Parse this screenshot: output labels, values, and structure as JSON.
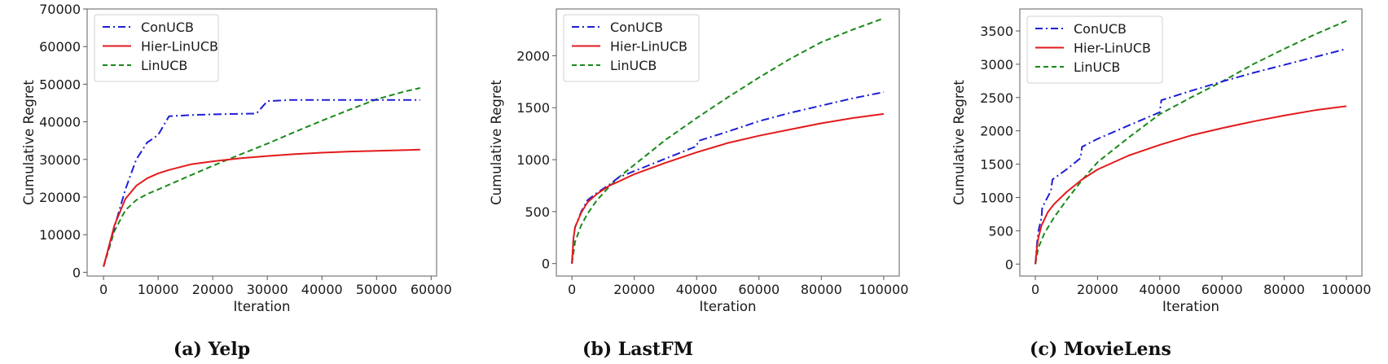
{
  "chart_data": [
    {
      "type": "line",
      "caption": "(a) Yelp",
      "xlabel": "Iteration",
      "ylabel": "Cumulative Regret",
      "xlim": [
        -3000,
        61000
      ],
      "ylim": [
        -1000,
        70000
      ],
      "xticks": [
        0,
        10000,
        20000,
        30000,
        40000,
        50000,
        60000
      ],
      "yticks": [
        0,
        10000,
        20000,
        30000,
        40000,
        50000,
        60000,
        70000
      ],
      "grid": false,
      "legend_position": "upper left",
      "series": [
        {
          "name": "ConUCB",
          "color": "#1f1fd6",
          "style": "dashdot",
          "x": [
            0,
            2000,
            4000,
            6000,
            8000,
            10000,
            12000,
            16000,
            20000,
            28000,
            30000,
            34000,
            40000,
            50000,
            58000
          ],
          "y": [
            1500,
            12000,
            22000,
            30000,
            34500,
            36500,
            41500,
            41800,
            42000,
            42200,
            45500,
            45800,
            45800,
            45800,
            45800
          ]
        },
        {
          "name": "Hier-LinUCB",
          "color": "#e31a1c",
          "style": "solid",
          "x": [
            0,
            2000,
            4000,
            6000,
            8000,
            10000,
            12000,
            16000,
            20000,
            25000,
            30000,
            35000,
            40000,
            45000,
            50000,
            58000
          ],
          "y": [
            1500,
            12500,
            19500,
            23000,
            25000,
            26300,
            27200,
            28700,
            29500,
            30300,
            30900,
            31400,
            31800,
            32100,
            32300,
            32600
          ]
        },
        {
          "name": "LinUCB",
          "color": "#1a8a1a",
          "style": "dashed",
          "x": [
            0,
            2000,
            4000,
            6000,
            8000,
            10000,
            15000,
            20000,
            25000,
            30000,
            35000,
            40000,
            45000,
            50000,
            55000,
            58000
          ],
          "y": [
            1500,
            11000,
            16500,
            19200,
            20800,
            22000,
            25200,
            28300,
            31300,
            34200,
            37300,
            40300,
            43200,
            46000,
            48000,
            49000
          ]
        }
      ]
    },
    {
      "type": "line",
      "caption": "(b) LastFM",
      "xlabel": "Iteration",
      "ylabel": "Cumulative Regret",
      "xlim": [
        -5000,
        105000
      ],
      "ylim": [
        -120,
        2450
      ],
      "xticks": [
        0,
        20000,
        40000,
        60000,
        80000,
        100000
      ],
      "yticks": [
        0,
        500,
        1000,
        1500,
        2000
      ],
      "grid": false,
      "legend_position": "upper left",
      "series": [
        {
          "name": "ConUCB",
          "color": "#1f1fd6",
          "style": "dashdot",
          "x": [
            0,
            500,
            1000,
            3000,
            5000,
            8000,
            12000,
            15000,
            20000,
            30000,
            40000,
            40500,
            50000,
            60000,
            70000,
            80000,
            90000,
            100000
          ],
          "y": [
            0,
            250,
            350,
            500,
            610,
            680,
            760,
            830,
            890,
            1010,
            1130,
            1180,
            1270,
            1370,
            1450,
            1520,
            1590,
            1650
          ]
        },
        {
          "name": "Hier-LinUCB",
          "color": "#e31a1c",
          "style": "solid",
          "x": [
            0,
            500,
            1000,
            3000,
            5000,
            8000,
            12000,
            15000,
            20000,
            30000,
            40000,
            50000,
            60000,
            70000,
            80000,
            90000,
            100000
          ],
          "y": [
            0,
            250,
            350,
            490,
            590,
            670,
            750,
            790,
            860,
            970,
            1070,
            1160,
            1230,
            1290,
            1350,
            1400,
            1440
          ]
        },
        {
          "name": "LinUCB",
          "color": "#1a8a1a",
          "style": "dashed",
          "x": [
            0,
            1000,
            3000,
            5000,
            8000,
            12000,
            15000,
            20000,
            30000,
            40000,
            50000,
            60000,
            70000,
            80000,
            90000,
            100000
          ],
          "y": [
            0,
            210,
            370,
            480,
            610,
            740,
            830,
            950,
            1190,
            1400,
            1600,
            1790,
            1970,
            2130,
            2250,
            2360
          ]
        }
      ]
    },
    {
      "type": "line",
      "caption": "(c) MovieLens",
      "xlabel": "Iteration",
      "ylabel": "Cumulative Regret",
      "xlim": [
        -5000,
        105000
      ],
      "ylim": [
        -180,
        3830
      ],
      "xticks": [
        0,
        20000,
        40000,
        60000,
        80000,
        100000
      ],
      "yticks": [
        0,
        500,
        1000,
        1500,
        2000,
        2500,
        3000,
        3500
      ],
      "grid": false,
      "legend_position": "upper left",
      "series": [
        {
          "name": "ConUCB",
          "color": "#1f1fd6",
          "style": "dashdot",
          "x": [
            0,
            500,
            1000,
            2000,
            2200,
            5000,
            5500,
            10000,
            14500,
            15000,
            20000,
            30000,
            40000,
            40500,
            50000,
            60000,
            70000,
            80000,
            90000,
            100000
          ],
          "y": [
            0,
            300,
            500,
            700,
            850,
            1100,
            1270,
            1420,
            1590,
            1760,
            1880,
            2080,
            2280,
            2460,
            2600,
            2740,
            2870,
            2990,
            3110,
            3230
          ]
        },
        {
          "name": "Hier-LinUCB",
          "color": "#e31a1c",
          "style": "solid",
          "x": [
            0,
            500,
            1000,
            2000,
            4000,
            6000,
            10000,
            15000,
            20000,
            30000,
            40000,
            50000,
            60000,
            70000,
            80000,
            90000,
            100000
          ],
          "y": [
            0,
            250,
            400,
            580,
            780,
            900,
            1080,
            1270,
            1420,
            1630,
            1790,
            1930,
            2040,
            2140,
            2230,
            2310,
            2370
          ]
        },
        {
          "name": "LinUCB",
          "color": "#1a8a1a",
          "style": "dashed",
          "x": [
            0,
            1000,
            3000,
            6000,
            10000,
            15000,
            20000,
            30000,
            40000,
            50000,
            60000,
            70000,
            80000,
            90000,
            100000
          ],
          "y": [
            0,
            250,
            470,
            700,
            960,
            1260,
            1530,
            1900,
            2250,
            2500,
            2740,
            3000,
            3230,
            3450,
            3650
          ]
        }
      ]
    }
  ]
}
